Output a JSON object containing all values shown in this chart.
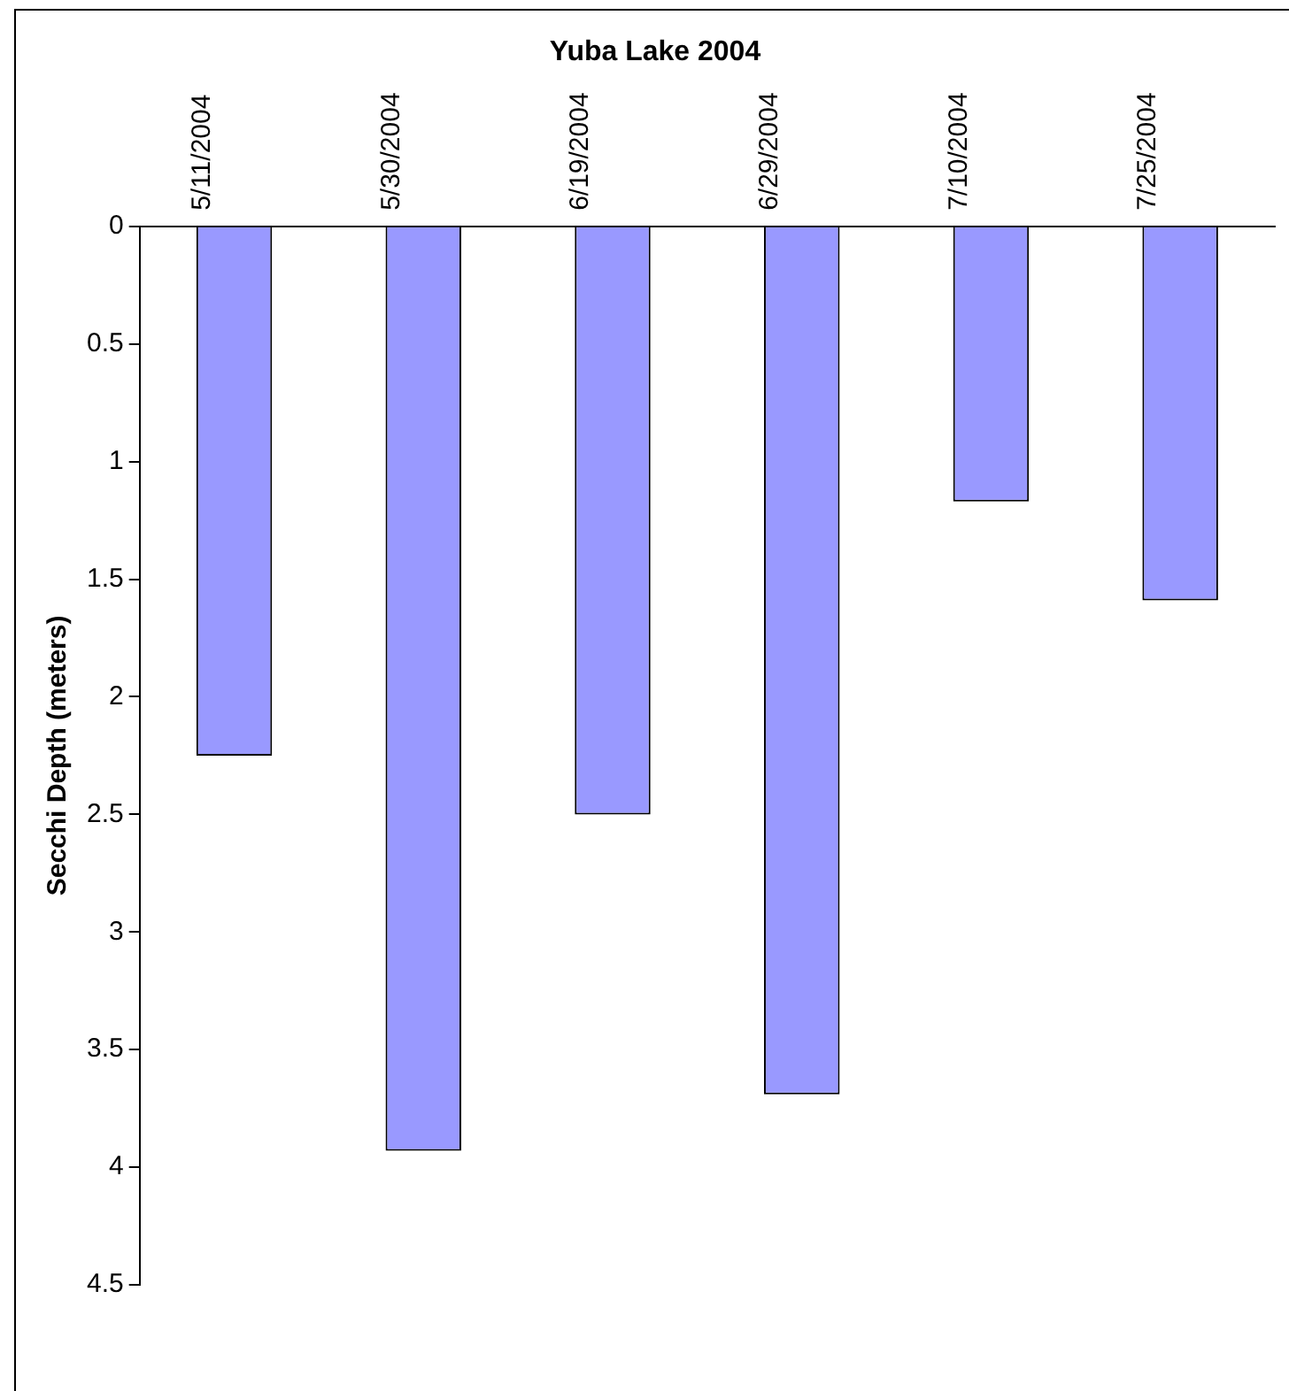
{
  "chart_data": {
    "type": "bar",
    "title": "Yuba Lake 2004",
    "ylabel": "Secchi Depth (meters)",
    "categories": [
      "5/11/2004",
      "5/30/2004",
      "6/19/2004",
      "6/29/2004",
      "7/10/2004",
      "7/25/2004"
    ],
    "values": [
      2.25,
      3.93,
      2.5,
      3.69,
      1.17,
      1.59
    ],
    "color": "#9999ff",
    "ylim": [
      4.5,
      0
    ],
    "yticks": [
      0,
      0.5,
      1,
      1.5,
      2,
      2.5,
      3,
      3.5,
      4,
      4.5
    ],
    "grid": false,
    "legend": false
  }
}
